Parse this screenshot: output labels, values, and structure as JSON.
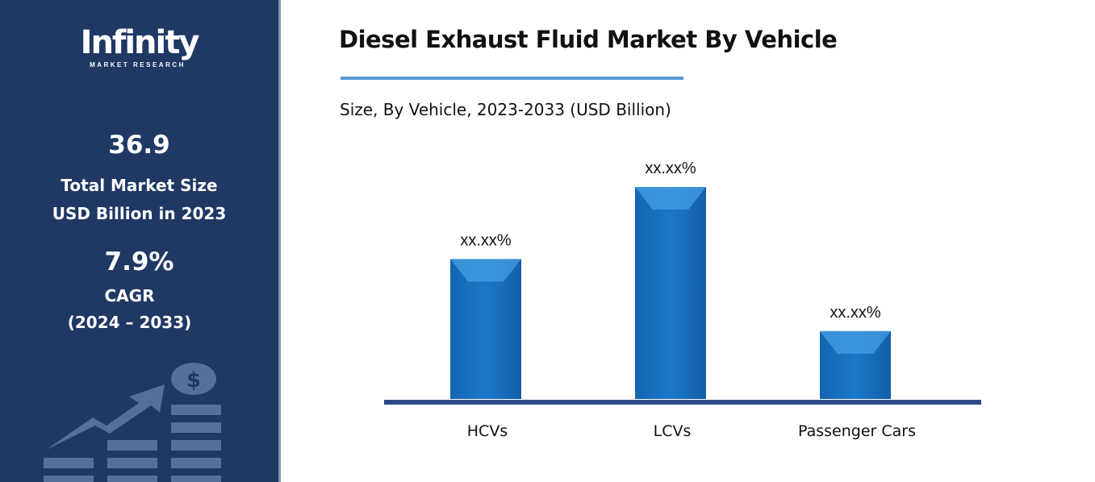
{
  "sidebar": {
    "logo": {
      "name": "Infinity",
      "tagline": "MARKET RESEARCH"
    },
    "market_size": "36.9",
    "market_size_label_1": "Total Market Size",
    "market_size_label_2": "USD Billion in 2023",
    "cagr": "7.9%",
    "cagr_label": "CAGR",
    "cagr_period": "(2024 – 2033)",
    "background": "#1f3864"
  },
  "header": {
    "title": "Diesel Exhaust Fluid Market By Vehicle",
    "subtitle": "Size, By Vehicle, 2023-2033 (USD Billion)",
    "accent": "#5b9bd5"
  },
  "chart_data": {
    "type": "bar",
    "title": "Diesel Exhaust Fluid Market By Vehicle",
    "subtitle": "Size, By Vehicle, 2023-2033 (USD Billion)",
    "categories": [
      "HCVs",
      "LCVs",
      "Passenger Cars"
    ],
    "values": [
      0.66,
      1.0,
      0.32
    ],
    "data_labels": [
      "xx.xx%",
      "xx.xx%",
      "xx.xx%"
    ],
    "ylim": [
      0,
      1
    ],
    "grid": false,
    "bar_color": "#1a74c4",
    "axis_color": "#2f4a8a"
  }
}
